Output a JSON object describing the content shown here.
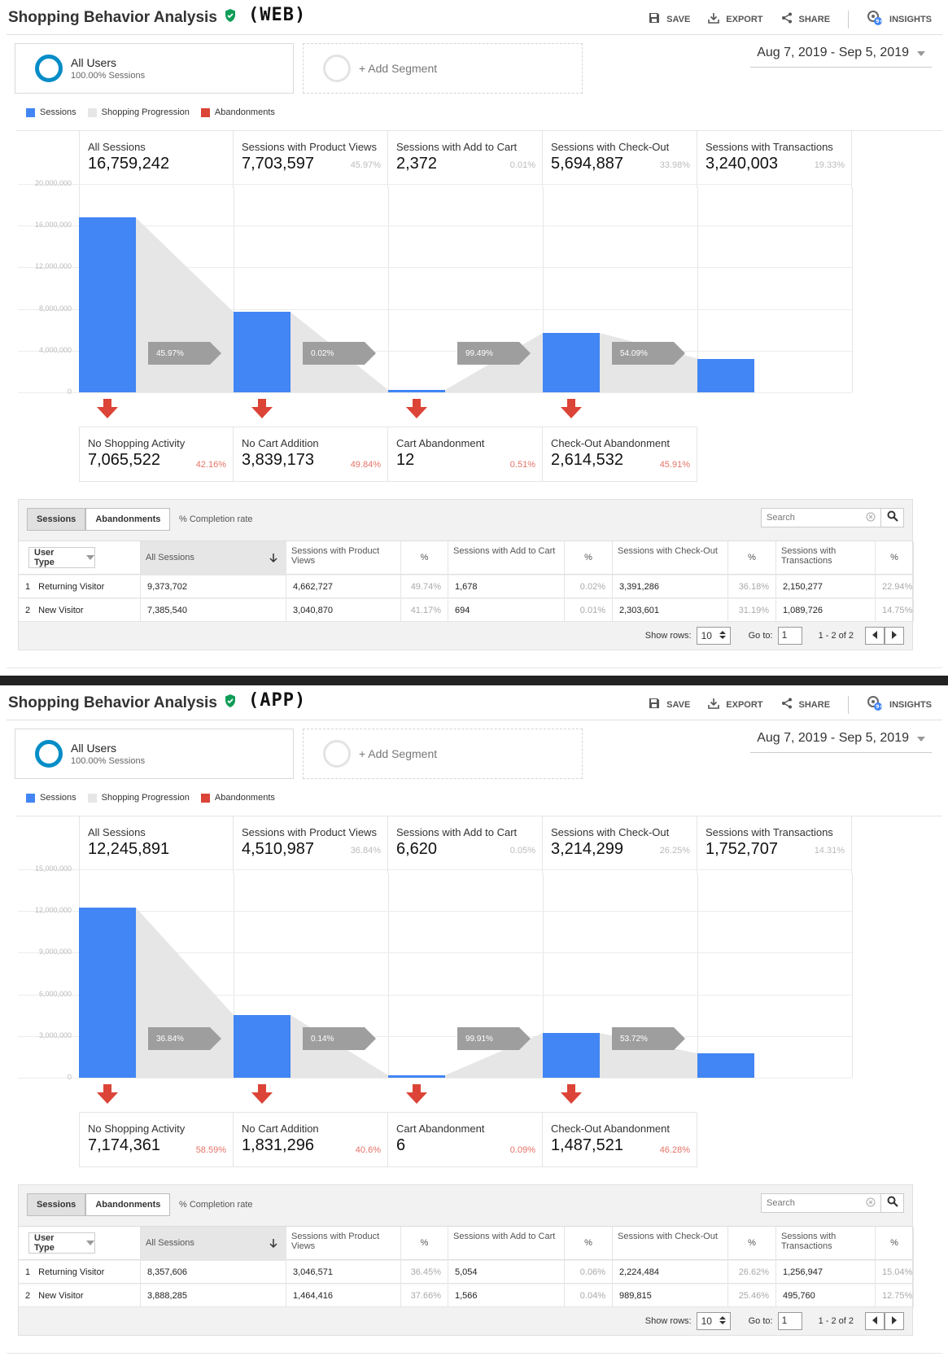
{
  "panels": [
    {
      "tag": "(WEB)",
      "title": "Shopping Behavior Analysis",
      "toolbar": {
        "save": "SAVE",
        "export": "EXPORT",
        "share": "SHARE",
        "insights": "INSIGHTS"
      },
      "segment": {
        "name": "All Users",
        "sub": "100.00% Sessions",
        "add": "+ Add Segment"
      },
      "date_range": "Aug 7, 2019 - Sep 5, 2019",
      "legend": [
        {
          "label": "Sessions",
          "color": "#4285f4"
        },
        {
          "label": "Shopping Progression",
          "color": "#e6e6e6"
        },
        {
          "label": "Abandonments",
          "color": "#db4437"
        }
      ],
      "y_ticks": [
        "20,000,000",
        "16,000,000",
        "12,000,000",
        "8,000,000",
        "4,000,000",
        "0"
      ],
      "chart_data": {
        "type": "bar",
        "categories": [
          "All Sessions",
          "Sessions with Product Views",
          "Sessions with Add to Cart",
          "Sessions with Check-Out",
          "Sessions with Transactions"
        ],
        "values": [
          16759242,
          7703597,
          2372,
          5694887,
          3240003
        ],
        "ylim": [
          0,
          20000000
        ]
      },
      "stages": [
        {
          "label": "All Sessions",
          "value": "16,759,242",
          "pct": ""
        },
        {
          "label": "Sessions with Product Views",
          "value": "7,703,597",
          "pct": "45.97%"
        },
        {
          "label": "Sessions with Add to Cart",
          "value": "2,372",
          "pct": "0.01%"
        },
        {
          "label": "Sessions with Check-Out",
          "value": "5,694,887",
          "pct": "33.98%"
        },
        {
          "label": "Sessions with Transactions",
          "value": "3,240,003",
          "pct": "19.33%"
        }
      ],
      "progressions": [
        "45.97%",
        "0.02%",
        "99.49%",
        "54.09%"
      ],
      "abandonments": [
        {
          "label": "No Shopping Activity",
          "value": "7,065,522",
          "pct": "42.16%"
        },
        {
          "label": "No Cart Addition",
          "value": "3,839,173",
          "pct": "49.84%"
        },
        {
          "label": "Cart Abandonment",
          "value": "12",
          "pct": "0.51%"
        },
        {
          "label": "Check-Out Abandonment",
          "value": "2,614,532",
          "pct": "45.91%"
        }
      ],
      "table": {
        "tabs": [
          "Sessions",
          "Abandonments"
        ],
        "completion": "% Completion rate",
        "search_placeholder": "Search",
        "dim": "User Type",
        "headers": [
          "All Sessions",
          "Sessions with Product Views",
          "%",
          "Sessions with Add to Cart",
          "%",
          "Sessions with Check-Out",
          "%",
          "Sessions with Transactions",
          "%"
        ],
        "rows": [
          [
            "1",
            "Returning Visitor",
            "9,373,702",
            "4,662,727",
            "49.74%",
            "1,678",
            "0.02%",
            "3,391,286",
            "36.18%",
            "2,150,277",
            "22.94%"
          ],
          [
            "2",
            "New Visitor",
            "7,385,540",
            "3,040,870",
            "41.17%",
            "694",
            "0.01%",
            "2,303,601",
            "31.19%",
            "1,089,726",
            "14.75%"
          ]
        ],
        "show_rows_label": "Show rows:",
        "show_rows": "10",
        "goto_label": "Go to:",
        "goto": "1",
        "range": "1 - 2 of 2"
      }
    },
    {
      "tag": "(APP)",
      "title": "Shopping Behavior Analysis",
      "toolbar": {
        "save": "SAVE",
        "export": "EXPORT",
        "share": "SHARE",
        "insights": "INSIGHTS"
      },
      "segment": {
        "name": "All Users",
        "sub": "100.00% Sessions",
        "add": "+ Add Segment"
      },
      "date_range": "Aug 7, 2019 - Sep 5, 2019",
      "legend": [
        {
          "label": "Sessions",
          "color": "#4285f4"
        },
        {
          "label": "Shopping Progression",
          "color": "#e6e6e6"
        },
        {
          "label": "Abandonments",
          "color": "#db4437"
        }
      ],
      "y_ticks": [
        "15,000,000",
        "12,000,000",
        "9,000,000",
        "6,000,000",
        "3,000,000",
        "0"
      ],
      "chart_data": {
        "type": "bar",
        "categories": [
          "All Sessions",
          "Sessions with Product Views",
          "Sessions with Add to Cart",
          "Sessions with Check-Out",
          "Sessions with Transactions"
        ],
        "values": [
          12245891,
          4510987,
          6620,
          3214299,
          1752707
        ],
        "ylim": [
          0,
          15000000
        ]
      },
      "stages": [
        {
          "label": "All Sessions",
          "value": "12,245,891",
          "pct": ""
        },
        {
          "label": "Sessions with Product Views",
          "value": "4,510,987",
          "pct": "36.84%"
        },
        {
          "label": "Sessions with Add to Cart",
          "value": "6,620",
          "pct": "0.05%"
        },
        {
          "label": "Sessions with Check-Out",
          "value": "3,214,299",
          "pct": "26.25%"
        },
        {
          "label": "Sessions with Transactions",
          "value": "1,752,707",
          "pct": "14.31%"
        }
      ],
      "progressions": [
        "36.84%",
        "0.14%",
        "99.91%",
        "53.72%"
      ],
      "abandonments": [
        {
          "label": "No Shopping Activity",
          "value": "7,174,361",
          "pct": "58.59%"
        },
        {
          "label": "No Cart Addition",
          "value": "1,831,296",
          "pct": "40.6%"
        },
        {
          "label": "Cart Abandonment",
          "value": "6",
          "pct": "0.09%"
        },
        {
          "label": "Check-Out Abandonment",
          "value": "1,487,521",
          "pct": "46.28%"
        }
      ],
      "table": {
        "tabs": [
          "Sessions",
          "Abandonments"
        ],
        "completion": "% Completion rate",
        "search_placeholder": "Search",
        "dim": "User Type",
        "headers": [
          "All Sessions",
          "Sessions with Product Views",
          "%",
          "Sessions with Add to Cart",
          "%",
          "Sessions with Check-Out",
          "%",
          "Sessions with Transactions",
          "%"
        ],
        "rows": [
          [
            "1",
            "Returning Visitor",
            "8,357,606",
            "3,046,571",
            "36.45%",
            "5,054",
            "0.06%",
            "2,224,484",
            "26.62%",
            "1,256,947",
            "15.04%"
          ],
          [
            "2",
            "New Visitor",
            "3,888,285",
            "1,464,416",
            "37.66%",
            "1,566",
            "0.04%",
            "989,815",
            "25.46%",
            "495,760",
            "12.75%"
          ]
        ],
        "show_rows_label": "Show rows:",
        "show_rows": "10",
        "goto_label": "Go to:",
        "goto": "1",
        "range": "1 - 2 of 2"
      }
    }
  ]
}
